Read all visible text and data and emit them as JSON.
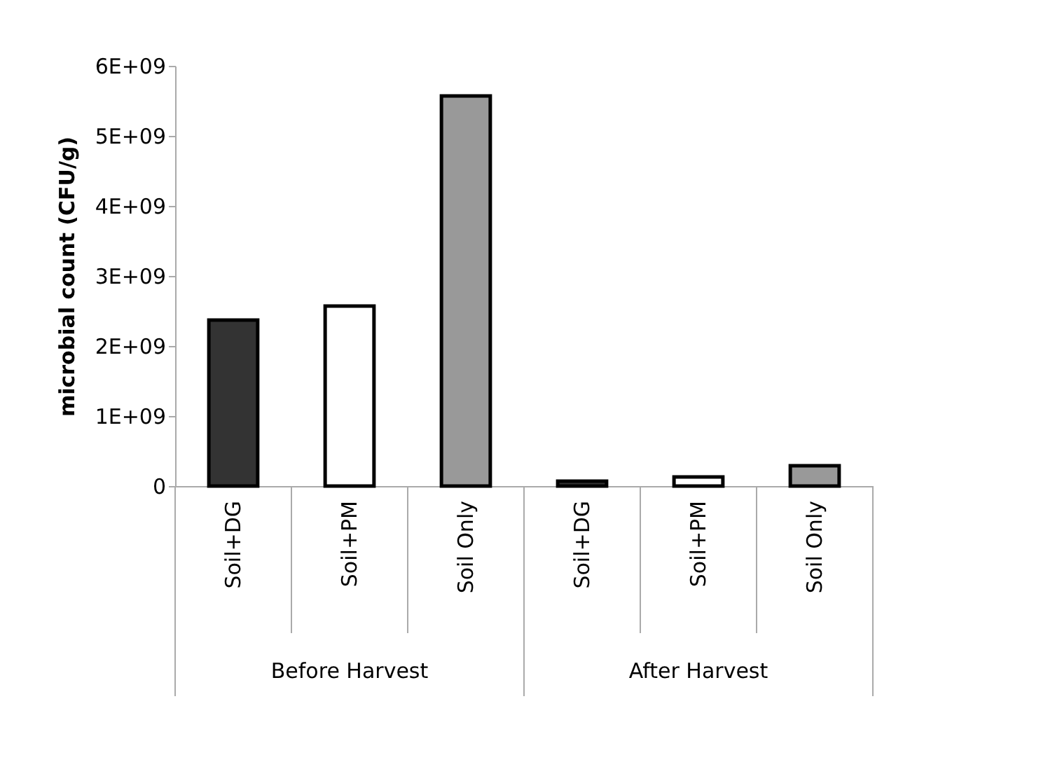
{
  "chart_data": {
    "type": "bar",
    "ylabel": "microbial count (CFU/g)",
    "categories": [
      "Soil+DG",
      "Soil+PM",
      "Soil Only",
      "Soil+DG",
      "Soil+PM",
      "Soil Only"
    ],
    "values": [
      2370000000,
      2570000000,
      5570000000,
      70000000,
      130000000,
      290000000
    ],
    "colors": [
      "#333333",
      "#ffffff",
      "#999999",
      "#333333",
      "#ffffff",
      "#999999"
    ],
    "ylim": [
      0,
      6000000000
    ],
    "yticks": [
      0,
      {
        "value": 1000000000,
        "label": "1E+09"
      },
      {
        "value": 2000000000,
        "label": "2E+09"
      },
      {
        "value": 3000000000,
        "label": "3E+09"
      },
      {
        "value": 4000000000,
        "label": "4E+09"
      },
      {
        "value": 5000000000,
        "label": "5E+09"
      },
      {
        "value": 6000000000,
        "label": "6E+09"
      }
    ],
    "annotations": [
      "Before Harvest",
      "After Harvest"
    ],
    "grid": false
  }
}
